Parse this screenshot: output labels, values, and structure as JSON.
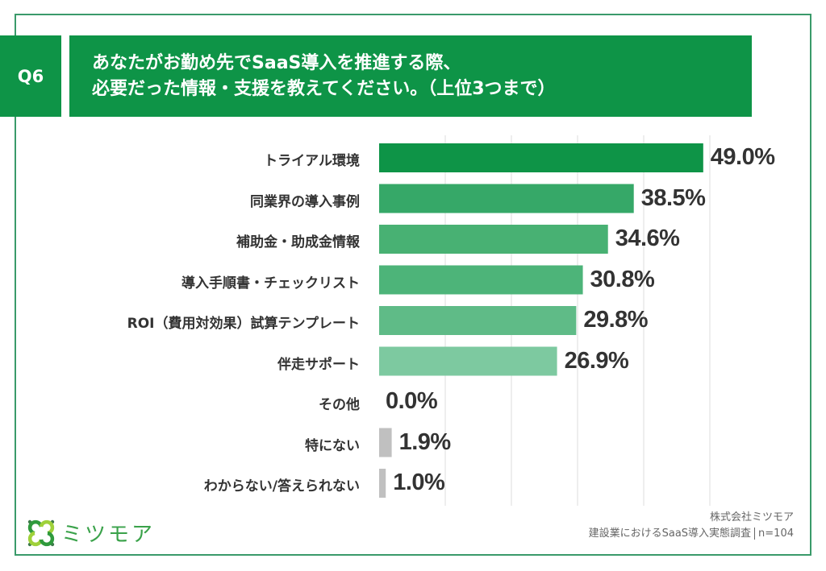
{
  "header": {
    "question_number": "Q6",
    "title_line1": "あなたがお勤め先でSaaS導入を推進する際、",
    "title_line2": "必要だった情報・支援を教えてください。（上位3つまで）"
  },
  "chart_data": {
    "type": "bar",
    "orientation": "horizontal",
    "title": "あなたがお勤め先でSaaS導入を推進する際、必要だった情報・支援を教えてください。（上位3つまで）",
    "xlabel": "",
    "ylabel": "",
    "xlim": [
      0,
      50
    ],
    "grid": true,
    "gridlines": [
      10,
      20,
      30,
      40,
      50
    ],
    "unit": "%",
    "categories": [
      "トライアル環境",
      "同業界の導入事例",
      "補助金・助成金情報",
      "導入手順書・チェックリスト",
      "ROI（費用対効果）試算テンプレート",
      "伴走サポート",
      "その他",
      "特にない",
      "わからない/答えられない"
    ],
    "values": [
      49.0,
      38.5,
      34.6,
      30.8,
      29.8,
      26.9,
      0.0,
      1.9,
      1.0
    ],
    "value_labels": [
      "49.0%",
      "38.5%",
      "34.6%",
      "30.8%",
      "29.8%",
      "26.9%",
      "0.0%",
      "1.9%",
      "1.0%"
    ],
    "colors": [
      "#0e9447",
      "#36a868",
      "#48b173",
      "#4db479",
      "#5fbb87",
      "#7dc9a0",
      "#c0c0c0",
      "#c0c0c0",
      "#c0c0c0"
    ]
  },
  "footer": {
    "brand": "ミツモア",
    "company": "株式会社ミツモア",
    "survey": "建設業におけるSaaS導入実態調査",
    "sample": "n=104"
  },
  "colors": {
    "brand_green": "#0e9447",
    "frame": "#3a9a6a",
    "grid": "#dddddd"
  }
}
